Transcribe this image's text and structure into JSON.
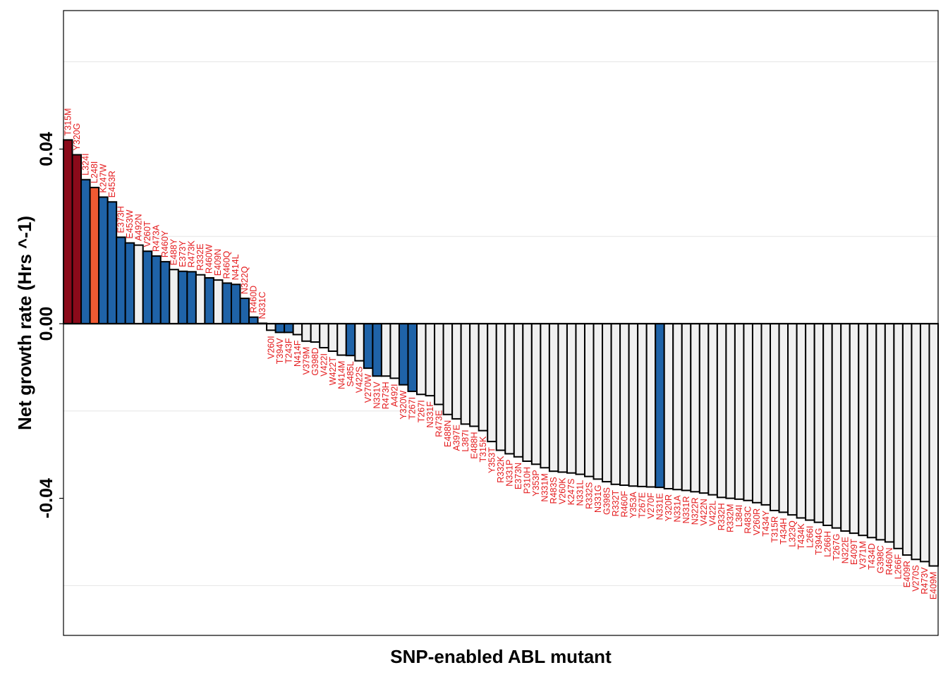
{
  "chart_data": {
    "type": "bar",
    "xlabel": "SNP-enabled ABL mutant",
    "ylabel": "Net growth rate (Hrs ^-1)",
    "ylim": [
      -0.072,
      0.072
    ],
    "yticks": [
      0.04,
      0.0,
      -0.04
    ],
    "ytick_labels": [
      "0.04",
      "0.00",
      "-0.04"
    ],
    "grid": "horizontal",
    "colors": {
      "dark_red": "#8b0a1a",
      "orange": "#f05a32",
      "blue": "#1f63a8",
      "light": "#f0f0f0",
      "label": "#e41a1c",
      "grid": "#e5e5e5",
      "zero_line": "#000000"
    },
    "bars": [
      {
        "label": "T315M",
        "value": 0.0421,
        "color": "dark_red"
      },
      {
        "label": "Y320G",
        "value": 0.0387,
        "color": "dark_red"
      },
      {
        "label": "L324I",
        "value": 0.033,
        "color": "blue"
      },
      {
        "label": "L248I",
        "value": 0.0312,
        "color": "orange"
      },
      {
        "label": "K247W",
        "value": 0.029,
        "color": "blue"
      },
      {
        "label": "E453R",
        "value": 0.0279,
        "color": "blue"
      },
      {
        "label": "E373H",
        "value": 0.0198,
        "color": "blue"
      },
      {
        "label": "E453W",
        "value": 0.0185,
        "color": "blue"
      },
      {
        "label": "A492N",
        "value": 0.018,
        "color": "light"
      },
      {
        "label": "V260T",
        "value": 0.0166,
        "color": "blue"
      },
      {
        "label": "R473A",
        "value": 0.0155,
        "color": "blue"
      },
      {
        "label": "R460Y",
        "value": 0.0142,
        "color": "blue"
      },
      {
        "label": "E488Y",
        "value": 0.0124,
        "color": "light"
      },
      {
        "label": "E373Y",
        "value": 0.012,
        "color": "blue"
      },
      {
        "label": "R473K",
        "value": 0.0119,
        "color": "blue"
      },
      {
        "label": "R332E",
        "value": 0.0112,
        "color": "light"
      },
      {
        "label": "R460W",
        "value": 0.0105,
        "color": "blue"
      },
      {
        "label": "E409N",
        "value": 0.01,
        "color": "light"
      },
      {
        "label": "R460Q",
        "value": 0.0093,
        "color": "blue"
      },
      {
        "label": "N414L",
        "value": 0.009,
        "color": "blue"
      },
      {
        "label": "N322Q",
        "value": 0.0058,
        "color": "blue"
      },
      {
        "label": "R460D",
        "value": 0.0015,
        "color": "blue"
      },
      {
        "label": "N331C",
        "value": 0.0001,
        "color": "light"
      },
      {
        "label": "V260I",
        "value": -0.0015,
        "color": "light"
      },
      {
        "label": "T394V",
        "value": -0.002,
        "color": "blue"
      },
      {
        "label": "T243F",
        "value": -0.002,
        "color": "blue"
      },
      {
        "label": "N414F",
        "value": -0.0025,
        "color": "light"
      },
      {
        "label": "V379M",
        "value": -0.004,
        "color": "light"
      },
      {
        "label": "G398D",
        "value": -0.0042,
        "color": "light"
      },
      {
        "label": "V422I",
        "value": -0.0055,
        "color": "light"
      },
      {
        "label": "W422T",
        "value": -0.0063,
        "color": "light"
      },
      {
        "label": "N414M",
        "value": -0.0072,
        "color": "light"
      },
      {
        "label": "S485L",
        "value": -0.0073,
        "color": "blue"
      },
      {
        "label": "V422S",
        "value": -0.0085,
        "color": "light"
      },
      {
        "label": "V270W",
        "value": -0.0102,
        "color": "blue"
      },
      {
        "label": "N331V",
        "value": -0.012,
        "color": "blue"
      },
      {
        "label": "R473H",
        "value": -0.012,
        "color": "light"
      },
      {
        "label": "A492I",
        "value": -0.0125,
        "color": "light"
      },
      {
        "label": "Y320W",
        "value": -0.014,
        "color": "blue"
      },
      {
        "label": "T267I",
        "value": -0.0155,
        "color": "blue"
      },
      {
        "label": "T267I",
        "value": -0.0162,
        "color": "light"
      },
      {
        "label": "N331F",
        "value": -0.0165,
        "color": "light"
      },
      {
        "label": "R473E",
        "value": -0.0185,
        "color": "light"
      },
      {
        "label": "E488N",
        "value": -0.0208,
        "color": "light"
      },
      {
        "label": "A397E",
        "value": -0.0218,
        "color": "light"
      },
      {
        "label": "L387I",
        "value": -0.023,
        "color": "light"
      },
      {
        "label": "E488H",
        "value": -0.0235,
        "color": "light"
      },
      {
        "label": "T315K",
        "value": -0.0245,
        "color": "light"
      },
      {
        "label": "Y353T",
        "value": -0.027,
        "color": "light"
      },
      {
        "label": "R332K",
        "value": -0.029,
        "color": "light"
      },
      {
        "label": "N331P",
        "value": -0.0298,
        "color": "light"
      },
      {
        "label": "E373N",
        "value": -0.0305,
        "color": "light"
      },
      {
        "label": "P310H",
        "value": -0.0315,
        "color": "light"
      },
      {
        "label": "Y353P",
        "value": -0.0322,
        "color": "light"
      },
      {
        "label": "N331M",
        "value": -0.033,
        "color": "light"
      },
      {
        "label": "R483S",
        "value": -0.0338,
        "color": "light"
      },
      {
        "label": "V260K",
        "value": -0.034,
        "color": "light"
      },
      {
        "label": "K247S",
        "value": -0.0342,
        "color": "light"
      },
      {
        "label": "N331L",
        "value": -0.0345,
        "color": "light"
      },
      {
        "label": "R332S",
        "value": -0.035,
        "color": "light"
      },
      {
        "label": "N331G",
        "value": -0.0356,
        "color": "light"
      },
      {
        "label": "G398S",
        "value": -0.0362,
        "color": "light"
      },
      {
        "label": "R332T",
        "value": -0.0368,
        "color": "light"
      },
      {
        "label": "R460F",
        "value": -0.037,
        "color": "light"
      },
      {
        "label": "Y353A",
        "value": -0.0372,
        "color": "light"
      },
      {
        "label": "T267E",
        "value": -0.0373,
        "color": "light"
      },
      {
        "label": "V270F",
        "value": -0.0374,
        "color": "light"
      },
      {
        "label": "N331E",
        "value": -0.0375,
        "color": "blue"
      },
      {
        "label": "Y320R",
        "value": -0.0378,
        "color": "light"
      },
      {
        "label": "N331A",
        "value": -0.038,
        "color": "light"
      },
      {
        "label": "N331R",
        "value": -0.0382,
        "color": "light"
      },
      {
        "label": "N322R",
        "value": -0.0385,
        "color": "light"
      },
      {
        "label": "V422N",
        "value": -0.0388,
        "color": "light"
      },
      {
        "label": "V422L",
        "value": -0.0392,
        "color": "light"
      },
      {
        "label": "R332H",
        "value": -0.0398,
        "color": "light"
      },
      {
        "label": "R332M",
        "value": -0.04,
        "color": "light"
      },
      {
        "label": "L384I",
        "value": -0.0402,
        "color": "light"
      },
      {
        "label": "R483C",
        "value": -0.0405,
        "color": "light"
      },
      {
        "label": "V260R",
        "value": -0.041,
        "color": "light"
      },
      {
        "label": "T434Y",
        "value": -0.0415,
        "color": "light"
      },
      {
        "label": "T315R",
        "value": -0.0428,
        "color": "light"
      },
      {
        "label": "T434H",
        "value": -0.0432,
        "color": "light"
      },
      {
        "label": "L323Q",
        "value": -0.0438,
        "color": "light"
      },
      {
        "label": "T434K",
        "value": -0.0445,
        "color": "light"
      },
      {
        "label": "L266I",
        "value": -0.045,
        "color": "light"
      },
      {
        "label": "T394G",
        "value": -0.0455,
        "color": "light"
      },
      {
        "label": "L266H",
        "value": -0.0462,
        "color": "light"
      },
      {
        "label": "T267G",
        "value": -0.0468,
        "color": "light"
      },
      {
        "label": "N322E",
        "value": -0.0475,
        "color": "light"
      },
      {
        "label": "E409T",
        "value": -0.048,
        "color": "light"
      },
      {
        "label": "V371M",
        "value": -0.0485,
        "color": "light"
      },
      {
        "label": "T434D",
        "value": -0.049,
        "color": "light"
      },
      {
        "label": "G398C",
        "value": -0.0495,
        "color": "light"
      },
      {
        "label": "R460N",
        "value": -0.05,
        "color": "light"
      },
      {
        "label": "L266F",
        "value": -0.0515,
        "color": "light"
      },
      {
        "label": "E409R",
        "value": -0.053,
        "color": "light"
      },
      {
        "label": "V270S",
        "value": -0.054,
        "color": "light"
      },
      {
        "label": "R473V",
        "value": -0.0545,
        "color": "light"
      },
      {
        "label": "E409M",
        "value": -0.0555,
        "color": "light"
      }
    ]
  }
}
